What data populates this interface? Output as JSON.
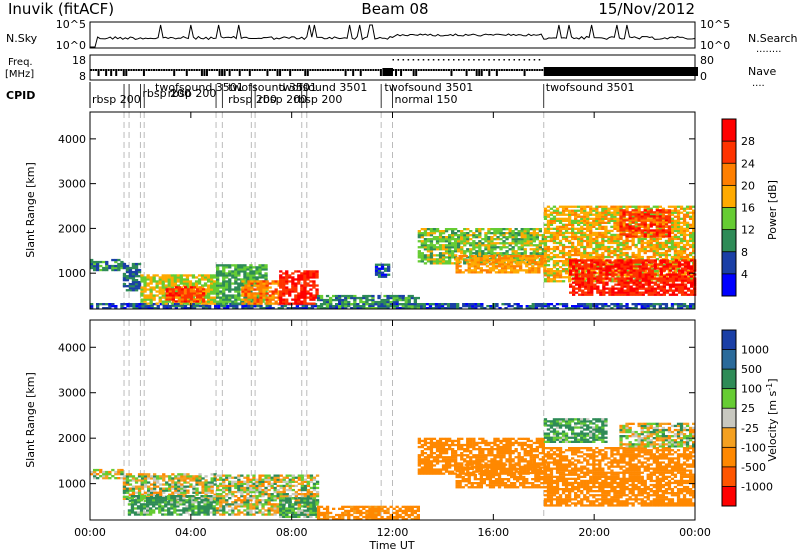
{
  "header": {
    "station": "Inuvik (fitACF)",
    "beam": "Beam 08",
    "date": "15/Nov/2012"
  },
  "left_labels": {
    "nsky": "N.Sky",
    "freq_line1": "Freq.",
    "freq_line2": "[MHz]",
    "cpid": "CPID"
  },
  "right_labels": {
    "nsearch": "N.Search",
    "nave": "Nave",
    "nsearch_line": "........",
    "nave_line": "...."
  },
  "noise_panel": {
    "left_ticks": [
      "10^5",
      "10^0"
    ],
    "right_ticks": [
      "10^5",
      "10^0"
    ]
  },
  "freq_panel": {
    "left_ticks": [
      "18",
      "8"
    ],
    "right_ticks": [
      "80",
      "0"
    ]
  },
  "cpid_labels": [
    {
      "text": "rbsp 200",
      "t": 0.0,
      "row": 2
    },
    {
      "text": "twofsound 3501",
      "t": 2.5,
      "row": 0
    },
    {
      "text": "rbsp 200",
      "t": 2.0,
      "row": 1
    },
    {
      "text": "rbsp 200",
      "t": 3.0,
      "row": 1
    },
    {
      "text": "twofsound 3501",
      "t": 5.4,
      "row": 0
    },
    {
      "text": "rbsp 200",
      "t": 5.4,
      "row": 2
    },
    {
      "text": "rbsp 200",
      "t": 6.6,
      "row": 2
    },
    {
      "text": "twofsound 3501",
      "t": 7.4,
      "row": 0
    },
    {
      "text": "rbsp 200",
      "t": 8.0,
      "row": 2
    },
    {
      "text": "twofsound 3501",
      "t": 11.6,
      "row": 0
    },
    {
      "text": "normal 150",
      "t": 12.0,
      "row": 2
    },
    {
      "text": "twofsound 3501",
      "t": 18.0,
      "row": 0
    }
  ],
  "boundaries_hours": [
    1.35,
    1.55,
    2.0,
    2.15,
    5.0,
    5.25,
    6.4,
    6.55,
    8.4,
    8.6,
    11.55,
    12.0,
    18.0
  ],
  "time_axis": {
    "label": "Time UT",
    "ticks": [
      "00:00",
      "04:00",
      "08:00",
      "12:00",
      "16:00",
      "20:00",
      "00:00"
    ]
  },
  "range_axis": {
    "label": "Slant Range [km]",
    "ticks": [
      "1000",
      "2000",
      "3000",
      "4000"
    ]
  },
  "colors": {
    "power": [
      "#0000ff",
      "#1a3fa6",
      "#2e8b57",
      "#66cc33",
      "#ffaa00",
      "#ff7f00",
      "#ff3300",
      "#ff0000"
    ],
    "velocity": [
      "#ff0000",
      "#ff5500",
      "#ff8800",
      "#f4a020",
      "#c8c8c0",
      "#66cc33",
      "#2e8b57",
      "#2a6a9a",
      "#1a3fa6"
    ]
  },
  "chart_data": [
    {
      "type": "heatmap",
      "title": "",
      "xlabel": "Time UT",
      "ylabel": "Slant Range [km]",
      "xlim": [
        0,
        24
      ],
      "ylim": [
        200,
        4600
      ],
      "colorbar": {
        "label": "Power [dB]",
        "ticks": [
          "4",
          "8",
          "12",
          "16",
          "20",
          "24",
          "28"
        ],
        "range": [
          0,
          32
        ]
      },
      "regions": [
        {
          "t0": 0.0,
          "t1": 1.3,
          "r0": 1050,
          "r1": 1300,
          "value": 10
        },
        {
          "t0": 0.0,
          "t1": 24.0,
          "r0": 200,
          "r1": 320,
          "value": 6
        },
        {
          "t0": 1.3,
          "t1": 2.0,
          "r0": 600,
          "r1": 1200,
          "value": 8
        },
        {
          "t0": 2.0,
          "t1": 5.0,
          "r0": 300,
          "r1": 950,
          "value": 16
        },
        {
          "t0": 3.0,
          "t1": 4.5,
          "r0": 350,
          "r1": 700,
          "value": 26
        },
        {
          "t0": 5.0,
          "t1": 7.0,
          "r0": 300,
          "r1": 1200,
          "value": 12
        },
        {
          "t0": 6.0,
          "t1": 7.5,
          "r0": 300,
          "r1": 800,
          "value": 22
        },
        {
          "t0": 7.5,
          "t1": 9.0,
          "r0": 300,
          "r1": 1050,
          "value": 28
        },
        {
          "t0": 9.0,
          "t1": 13.0,
          "r0": 200,
          "r1": 500,
          "value": 10
        },
        {
          "t0": 11.3,
          "t1": 11.8,
          "r0": 900,
          "r1": 1200,
          "value": 6
        },
        {
          "t0": 13.0,
          "t1": 18.0,
          "r0": 1200,
          "r1": 2000,
          "value": 14
        },
        {
          "t0": 14.5,
          "t1": 18.0,
          "r0": 1000,
          "r1": 1400,
          "value": 20
        },
        {
          "t0": 18.0,
          "t1": 24.0,
          "r0": 800,
          "r1": 2500,
          "value": 18
        },
        {
          "t0": 19.0,
          "t1": 24.0,
          "r0": 500,
          "r1": 1300,
          "value": 28
        },
        {
          "t0": 21.0,
          "t1": 23.0,
          "r0": 1800,
          "r1": 2400,
          "value": 26
        }
      ]
    },
    {
      "type": "heatmap",
      "title": "",
      "xlabel": "Time UT",
      "ylabel": "Slant Range [km]",
      "xlim": [
        0,
        24
      ],
      "ylim": [
        200,
        4600
      ],
      "colorbar": {
        "label": "Velocity [m s-1]",
        "ticks": [
          "-1000",
          "-500",
          "-100",
          "-25",
          "25",
          "100",
          "500",
          "1000"
        ],
        "range": [
          -1250,
          1250
        ]
      },
      "regions": [
        {
          "t0": 0.0,
          "t1": 1.3,
          "r0": 1100,
          "r1": 1300,
          "value": 0
        },
        {
          "t0": 1.3,
          "t1": 5.0,
          "r0": 600,
          "r1": 1200,
          "value": 0
        },
        {
          "t0": 1.5,
          "t1": 5.0,
          "r0": 300,
          "r1": 750,
          "value": 150
        },
        {
          "t0": 5.0,
          "t1": 9.0,
          "r0": 300,
          "r1": 1200,
          "value": 0
        },
        {
          "t0": 7.5,
          "t1": 9.0,
          "r0": 250,
          "r1": 700,
          "value": 150
        },
        {
          "t0": 9.0,
          "t1": 13.0,
          "r0": 200,
          "r1": 500,
          "value": -200
        },
        {
          "t0": 13.0,
          "t1": 18.0,
          "r0": 1200,
          "r1": 2000,
          "value": -300
        },
        {
          "t0": 14.5,
          "t1": 18.0,
          "r0": 900,
          "r1": 1400,
          "value": -300
        },
        {
          "t0": 18.0,
          "t1": 24.0,
          "r0": 500,
          "r1": 1800,
          "value": -300
        },
        {
          "t0": 18.0,
          "t1": 20.5,
          "r0": 1900,
          "r1": 2400,
          "value": 150
        },
        {
          "t0": 21.0,
          "t1": 24.0,
          "r0": 1800,
          "r1": 2300,
          "value": 0
        }
      ]
    }
  ]
}
